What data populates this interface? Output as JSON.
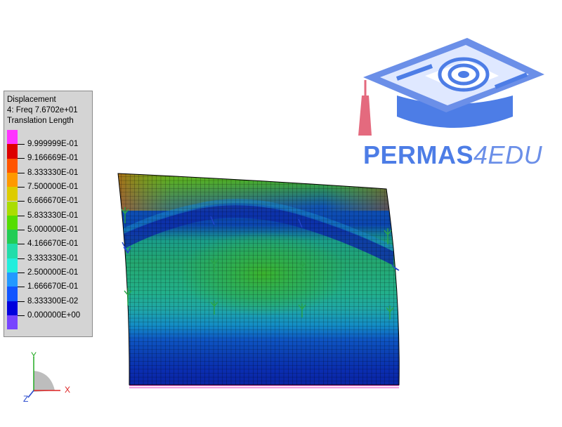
{
  "legend": {
    "title_lines": [
      "Displacement",
      "4: Freq 7.6702e+01",
      "Translation Length"
    ],
    "swatch_colors": [
      "#ff33ff",
      "#dd0000",
      "#ff5500",
      "#ff9900",
      "#ddcc00",
      "#aadd00",
      "#55dd00",
      "#22cc55",
      "#22ddaa",
      "#22eedd",
      "#2299ff",
      "#1155ff",
      "#0000dd",
      "#7744ff"
    ],
    "labels": [
      "9.999999E-01",
      "9.166669E-01",
      "8.333330E-01",
      "7.500000E-01",
      "6.666670E-01",
      "5.833330E-01",
      "5.000000E-01",
      "4.166670E-01",
      "3.333330E-01",
      "2.500000E-01",
      "1.666670E-01",
      "8.333300E-02",
      "0.000000E+00"
    ]
  },
  "logo": {
    "text_main": "PERMAS",
    "text_accent": "4EDU",
    "color_main": "#4d7de6",
    "color_accent": "#6b8fe8",
    "tassel_color": "#e46a7e"
  },
  "axes": {
    "x": "X",
    "y": "Y",
    "z": "Z",
    "x_color": "#dd2222",
    "y_color": "#22aa22",
    "z_color": "#2244cc"
  },
  "mesh": {
    "grid_color": "#000000"
  }
}
